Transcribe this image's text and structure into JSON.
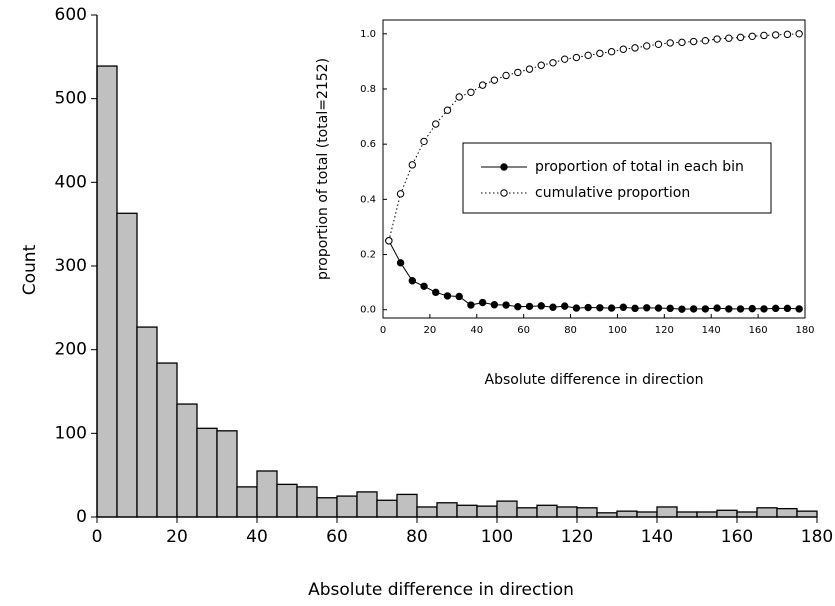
{
  "chart_data": [
    {
      "type": "histogram",
      "xlabel": "Absolute difference in direction",
      "ylabel": "Count",
      "bins": [
        0,
        5,
        10,
        15,
        20,
        25,
        30,
        35,
        40,
        45,
        50,
        55,
        60,
        65,
        70,
        75,
        80,
        85,
        90,
        95,
        100,
        105,
        110,
        115,
        120,
        125,
        130,
        135,
        140,
        145,
        150,
        155,
        160,
        165,
        170,
        175,
        180
      ],
      "values": [
        539,
        363,
        227,
        184,
        135,
        106,
        103,
        36,
        55,
        39,
        36,
        23,
        25,
        30,
        20,
        27,
        12,
        17,
        14,
        13,
        19,
        11,
        14,
        12,
        11,
        5,
        7,
        6,
        12,
        6,
        6,
        8,
        6,
        11,
        10,
        7
      ],
      "color": "#c0c0c0",
      "xlim": [
        0,
        180
      ],
      "ylim": [
        0,
        600
      ],
      "xticks": [
        0,
        20,
        40,
        60,
        80,
        100,
        120,
        140,
        160,
        180
      ],
      "yticks": [
        0,
        100,
        200,
        300,
        400,
        500,
        600
      ]
    },
    {
      "type": "line",
      "xlabel": "Absolute difference in direction",
      "ylabel": "proportion of total (total=2152)",
      "x": [
        2.5,
        7.5,
        12.5,
        17.5,
        22.5,
        27.5,
        32.5,
        37.5,
        42.5,
        47.5,
        52.5,
        57.5,
        62.5,
        67.5,
        72.5,
        77.5,
        82.5,
        87.5,
        92.5,
        97.5,
        102.5,
        107.5,
        112.5,
        117.5,
        122.5,
        127.5,
        132.5,
        137.5,
        142.5,
        147.5,
        152.5,
        157.5,
        162.5,
        167.5,
        172.5,
        177.5
      ],
      "series": [
        {
          "name": "proportion of total in each bin",
          "color": "#000000",
          "marker": "filled",
          "linestyle": "solid",
          "values": [
            0.25,
            0.17,
            0.105,
            0.085,
            0.063,
            0.05,
            0.048,
            0.017,
            0.026,
            0.018,
            0.017,
            0.011,
            0.012,
            0.014,
            0.009,
            0.013,
            0.006,
            0.008,
            0.007,
            0.006,
            0.009,
            0.005,
            0.007,
            0.006,
            0.005,
            0.002,
            0.003,
            0.003,
            0.006,
            0.003,
            0.003,
            0.004,
            0.003,
            0.005,
            0.005,
            0.003
          ]
        },
        {
          "name": "cumulative proportion",
          "color": "#000000",
          "marker": "open",
          "linestyle": "dotted",
          "values": [
            0.25,
            0.42,
            0.525,
            0.61,
            0.673,
            0.723,
            0.771,
            0.788,
            0.814,
            0.832,
            0.849,
            0.86,
            0.872,
            0.886,
            0.895,
            0.908,
            0.914,
            0.922,
            0.929,
            0.935,
            0.944,
            0.949,
            0.956,
            0.962,
            0.967,
            0.969,
            0.972,
            0.975,
            0.981,
            0.984,
            0.987,
            0.991,
            0.994,
            0.996,
            0.998,
            1.0
          ]
        }
      ],
      "legend": "right",
      "xlim": [
        0,
        180
      ],
      "ylim": [
        -0.03,
        1.05
      ],
      "xticks": [
        0,
        20,
        40,
        60,
        80,
        100,
        120,
        140,
        160,
        180
      ],
      "yticks": [
        {
          "value": 0,
          "label": "0.0"
        },
        {
          "value": 0.2,
          "label": "0.2"
        },
        {
          "value": 0.4,
          "label": "0.4"
        },
        {
          "value": 0.6,
          "label": "0.6"
        },
        {
          "value": 0.8,
          "label": "0.8"
        },
        {
          "value": 1,
          "label": "1.0"
        }
      ]
    }
  ]
}
